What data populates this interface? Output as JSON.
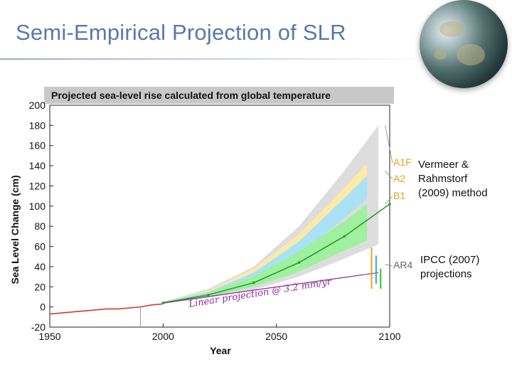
{
  "slide": {
    "title": "Semi-Empirical Projection of SLR"
  },
  "annotations": {
    "vermeer_line1": "Vermeer &",
    "vermeer_line2": "Rahmstorf",
    "vermeer_line3": "(2009) method",
    "ipcc_line1": "IPCC (2007)",
    "ipcc_line2": "projections"
  },
  "colors": {
    "title": "#5a78a8",
    "a1f_band": "#fde9a8",
    "a2_band": "#a9e2f4",
    "b1_band": "#9ff09f",
    "uncertainty_band": "#dddddd",
    "observed": "#d63a2a",
    "projection_line": "#2f9a2f",
    "linear_line": "#8a2a9a",
    "scenario_label": "#e8a020"
  },
  "chart_data": {
    "type": "line",
    "title": "Projected sea-level rise calculated from global temperature",
    "xlabel": "Year",
    "ylabel": "Sea Level Change (cm)",
    "xlim": [
      1950,
      2100
    ],
    "ylim": [
      -20,
      200
    ],
    "x_ticks": [
      1950,
      2000,
      2050,
      2100
    ],
    "y_ticks": [
      -20,
      0,
      20,
      40,
      60,
      80,
      100,
      120,
      140,
      160,
      180,
      200
    ],
    "grid": false,
    "observed": {
      "x": [
        1950,
        1955,
        1960,
        1965,
        1970,
        1975,
        1980,
        1985,
        1990,
        1995,
        2000
      ],
      "y": [
        -7,
        -6,
        -5,
        -4,
        -3,
        -2,
        -2,
        -1,
        0,
        2,
        3
      ]
    },
    "projection_bands": [
      {
        "name": "uncertainty",
        "x": [
          2000,
          2020,
          2040,
          2060,
          2080,
          2095
        ],
        "lower": [
          3,
          9,
          17,
          30,
          48,
          62
        ],
        "upper": [
          5,
          18,
          40,
          80,
          135,
          180
        ]
      },
      {
        "name": "A1F",
        "x": [
          2000,
          2020,
          2040,
          2060,
          2080,
          2090
        ],
        "lower": [
          3,
          14,
          30,
          58,
          100,
          125
        ],
        "upper": [
          5,
          16,
          38,
          72,
          118,
          142
        ]
      },
      {
        "name": "A2",
        "x": [
          2000,
          2020,
          2040,
          2060,
          2080,
          2090
        ],
        "lower": [
          3,
          12,
          27,
          52,
          88,
          108
        ],
        "upper": [
          5,
          15,
          34,
          65,
          108,
          130
        ]
      },
      {
        "name": "B1",
        "x": [
          2000,
          2020,
          2040,
          2060,
          2080,
          2090
        ],
        "lower": [
          3,
          10,
          20,
          35,
          56,
          66
        ],
        "upper": [
          5,
          14,
          30,
          55,
          85,
          102
        ]
      }
    ],
    "projection_line": {
      "x": [
        2000,
        2020,
        2040,
        2060,
        2080,
        2100
      ],
      "y": [
        4,
        12,
        24,
        44,
        70,
        102
      ]
    },
    "scenario_labels": [
      "A1F",
      "A2",
      "B1",
      "AR4"
    ],
    "ar4_bars": [
      {
        "x": 2092,
        "low": 18,
        "high": 59
      },
      {
        "x": 2094,
        "low": 23,
        "high": 51
      },
      {
        "x": 2096,
        "low": 18,
        "high": 38
      }
    ],
    "linear": {
      "x": [
        2000,
        2095
      ],
      "y": [
        4,
        34
      ],
      "label": "Linear projection @ 3.2 mm/yr"
    }
  }
}
